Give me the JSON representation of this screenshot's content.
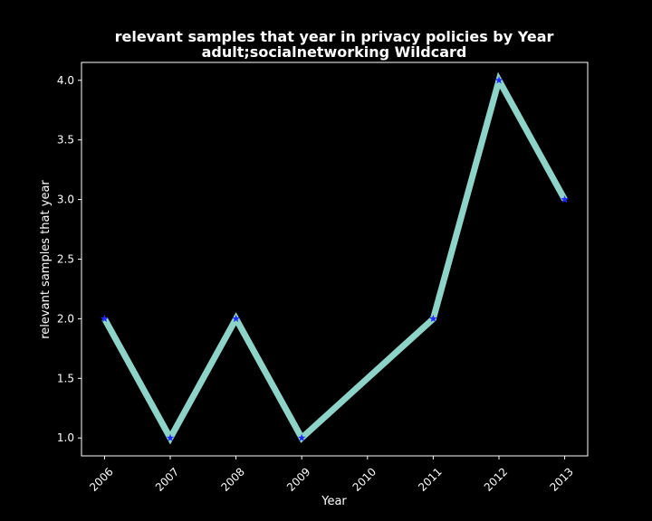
{
  "chart_data": {
    "type": "line",
    "title_line1": "relevant samples that year in privacy policies by Year",
    "title_line2": "adult;socialnetworking Wildcard",
    "xlabel": "Year",
    "ylabel": "relevant samples that year",
    "x": [
      2006,
      2007,
      2008,
      2009,
      2011,
      2012,
      2013
    ],
    "x_ticks": [
      "2006",
      "2007",
      "2008",
      "2009",
      "2010",
      "2011",
      "2012",
      "2013"
    ],
    "y_ticks": [
      "1.0",
      "1.5",
      "2.0",
      "2.5",
      "3.0",
      "3.5",
      "4.0"
    ],
    "series": [
      {
        "values": [
          2,
          1,
          2,
          1,
          2,
          4,
          3
        ],
        "line_color": "#8dd3c7",
        "marker": "star",
        "marker_color": "#1f2bff"
      }
    ],
    "xlim": [
      2005.65,
      2013.35
    ],
    "ylim": [
      0.85,
      4.15
    ],
    "grid": false,
    "background": "#000000",
    "foreground": "#ffffff"
  }
}
